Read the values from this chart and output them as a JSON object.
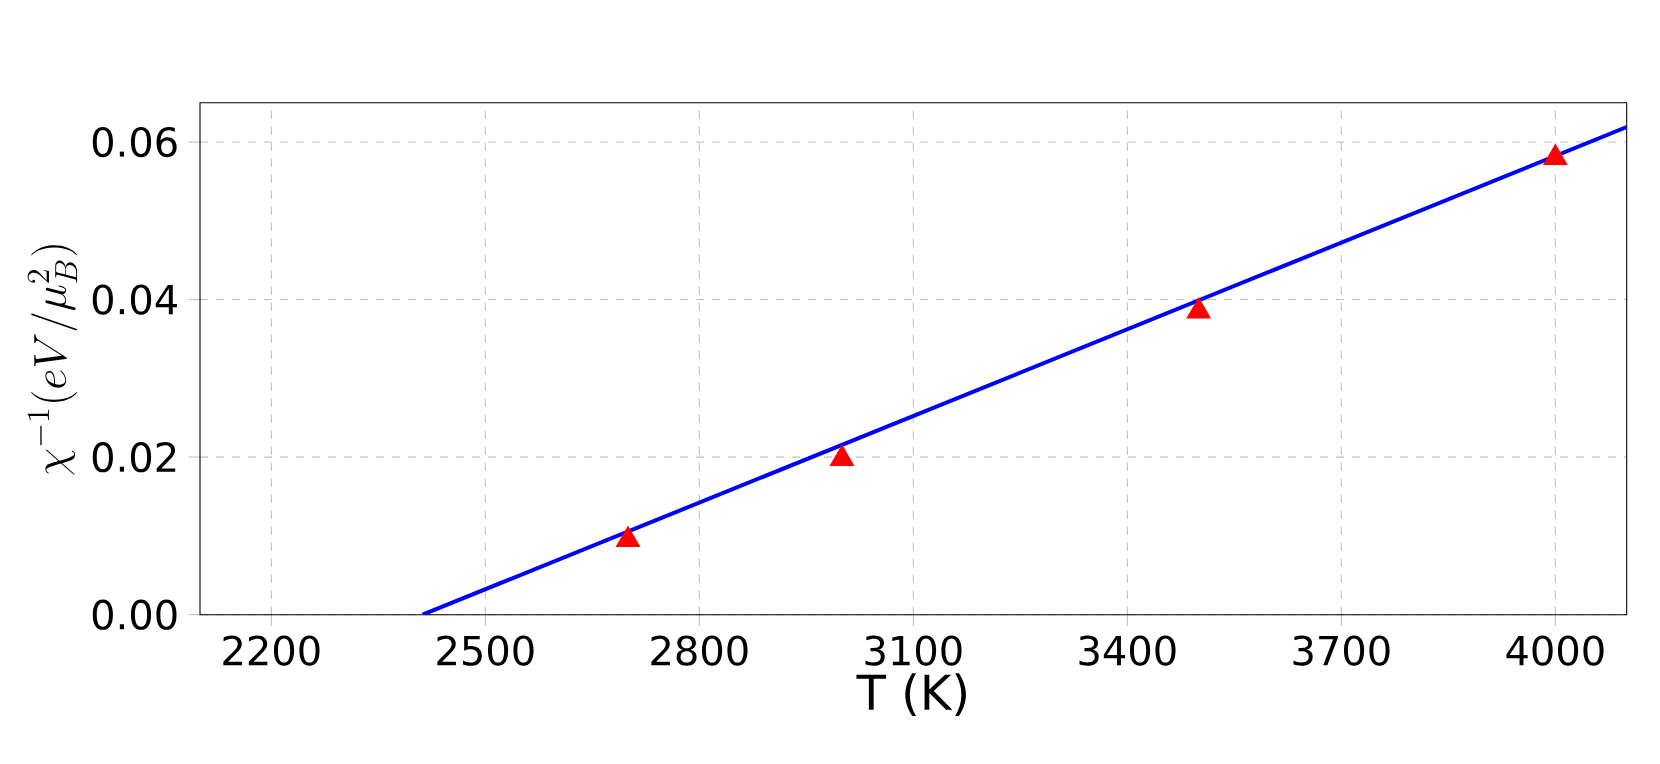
{
  "chart_data": {
    "type": "scatter",
    "xlabel": "T (K)",
    "ylabel": "\\chi^{-1}(eV/\\mu_B^2)",
    "xlim": [
      2100,
      4100
    ],
    "ylim": [
      0,
      0.065
    ],
    "xticks": [
      2200,
      2500,
      2800,
      3100,
      3400,
      3700,
      4000
    ],
    "yticks": [
      {
        "value": 0,
        "label": "0.00"
      },
      {
        "value": 0.02,
        "label": "0.02"
      },
      {
        "value": 0.04,
        "label": "0.04"
      },
      {
        "value": 0.06,
        "label": "0.06"
      }
    ],
    "grid": true,
    "series": [
      {
        "type": "line",
        "color": "#0000ff",
        "marker": "none",
        "x": [
          2412,
          4100
        ],
        "values": [
          0,
          0.0619
        ]
      },
      {
        "color": "#ff0000",
        "marker": "triangle",
        "x": [
          2700,
          3000,
          3500,
          4000
        ],
        "values": [
          0.0095,
          0.0198,
          0.0385,
          0.058
        ]
      }
    ]
  }
}
